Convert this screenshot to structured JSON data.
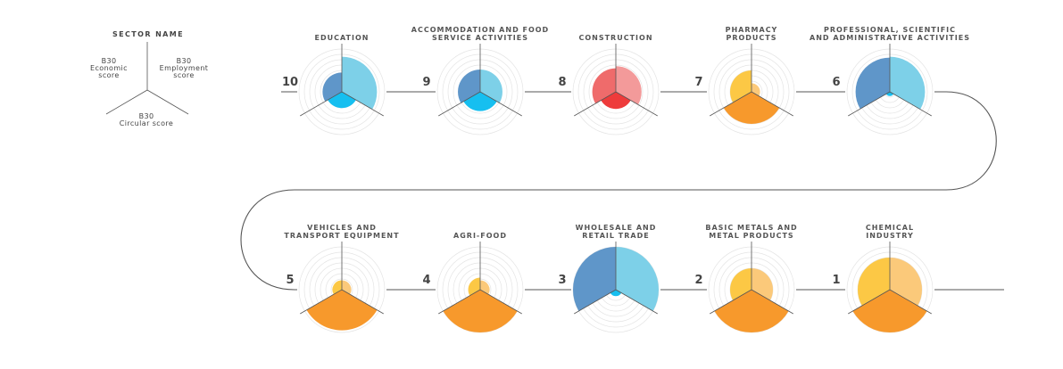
{
  "legend": {
    "title": "SECTOR NAME",
    "economic_label": "B30\nEconomic\nscore",
    "employment_label": "B30\nEmployment\nscore",
    "circular_label": "B30\nCircular score"
  },
  "colors": {
    "blue_light": "#7dd0e8",
    "blue_dark": "#5f96c9",
    "blue_bright": "#16bff0",
    "red_light": "#f39a9a",
    "red_mid": "#ef6b6b",
    "red_bright": "#ee3b3b",
    "orange_light": "#fbc97a",
    "orange_yellow": "#fcc845",
    "orange": "#f7992c",
    "ring": "#e4e4e4",
    "axis": "#555555",
    "connector": "#555555"
  },
  "chart_data": {
    "type": "radar",
    "axes": [
      "Economic score",
      "Employment score",
      "Circular score"
    ],
    "rings": 8,
    "sectors": [
      {
        "rank": "10",
        "name": "EDUCATION",
        "palette": "blue",
        "economic": 0.45,
        "employment": 0.82,
        "circular": 0.38
      },
      {
        "rank": "9",
        "name": "ACCOMMODATION AND FOOD\nSERVICE ACTIVITIES",
        "palette": "blue",
        "economic": 0.52,
        "employment": 0.52,
        "circular": 0.45
      },
      {
        "rank": "8",
        "name": "CONSTRUCTION",
        "palette": "red",
        "economic": 0.55,
        "employment": 0.6,
        "circular": 0.4
      },
      {
        "rank": "7",
        "name": "PHARMACY\nPRODUCTS",
        "palette": "orange",
        "economic": 0.5,
        "employment": 0.2,
        "circular": 0.75
      },
      {
        "rank": "6",
        "name": "PROFESSIONAL, SCIENTIFIC\nAND ADMINISTRATIVE ACTIVITIES",
        "palette": "blue",
        "economic": 0.8,
        "employment": 0.82,
        "circular": 0.1
      },
      {
        "rank": "5",
        "name": "VEHICLES AND\nTRANSPORT EQUIPMENT",
        "palette": "orange",
        "economic": 0.22,
        "employment": 0.22,
        "circular": 0.95
      },
      {
        "rank": "4",
        "name": "AGRI-FOOD",
        "palette": "orange",
        "economic": 0.28,
        "employment": 0.22,
        "circular": 1.0
      },
      {
        "rank": "3",
        "name": "WHOLESALE AND\nRETAIL TRADE",
        "palette": "blue",
        "economic": 1.0,
        "employment": 1.0,
        "circular": 0.15
      },
      {
        "rank": "2",
        "name": "BASIC METALS AND\nMETAL PRODUCTS",
        "palette": "orange",
        "economic": 0.5,
        "employment": 0.5,
        "circular": 1.0
      },
      {
        "rank": "1",
        "name": "CHEMICAL\nINDUSTRY",
        "palette": "orange",
        "economic": 0.75,
        "employment": 0.75,
        "circular": 1.0
      }
    ]
  }
}
